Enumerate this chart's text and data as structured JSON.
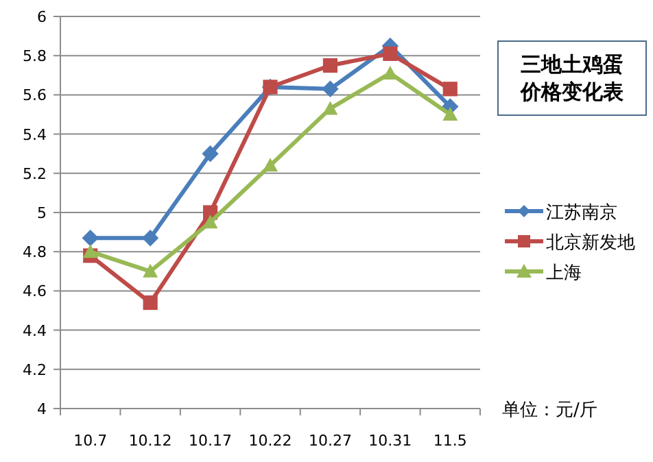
{
  "chart_data": {
    "type": "line",
    "title": "三地土鸡蛋价格变化表",
    "categories": [
      "10.7",
      "10.12",
      "10.17",
      "10.22",
      "10.27",
      "10.31",
      "11.5"
    ],
    "series": [
      {
        "name": "江苏南京",
        "color": "#4a7ebb",
        "marker": "diamond",
        "values": [
          4.87,
          4.87,
          5.3,
          5.64,
          5.63,
          5.85,
          5.54
        ]
      },
      {
        "name": "北京新发地",
        "color": "#be4b48",
        "marker": "square",
        "values": [
          4.78,
          4.54,
          5.0,
          5.64,
          5.75,
          5.81,
          5.63
        ]
      },
      {
        "name": "上海",
        "color": "#98b954",
        "marker": "triangle",
        "values": [
          4.8,
          4.7,
          4.95,
          5.24,
          5.53,
          5.71,
          5.5
        ]
      }
    ],
    "ylim": [
      4,
      6
    ],
    "yticks": [
      4,
      4.2,
      4.4,
      4.6,
      4.8,
      5,
      5.2,
      5.4,
      5.6,
      5.8,
      6
    ],
    "grid": "y",
    "legend": "right",
    "line_style": "solid",
    "annotations": [
      "单位：元/斤"
    ]
  }
}
